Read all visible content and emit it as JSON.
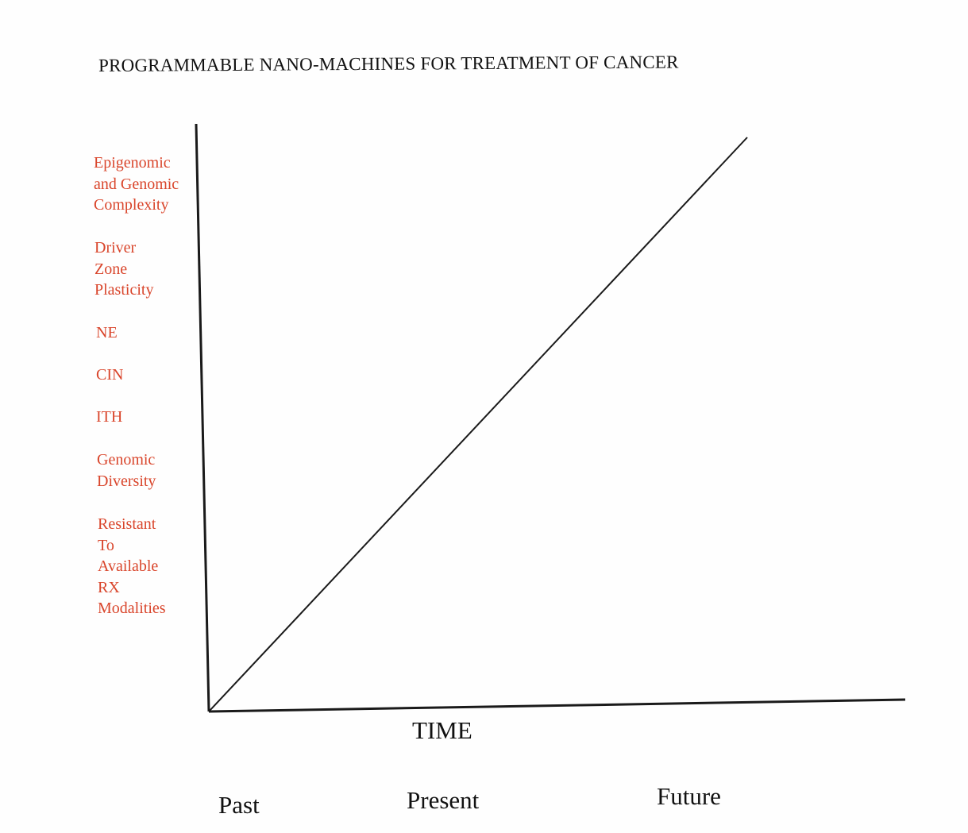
{
  "chart_data": {
    "type": "line",
    "title": "PROGRAMMABLE NANO-MACHINES FOR TREATMENT OF CANCER",
    "xlabel": "TIME",
    "x_tick_labels": [
      "Past",
      "Present",
      "Future"
    ],
    "y_labels": [
      [
        "Epigenomic",
        "and Genomic",
        "Complexity"
      ],
      [
        "Driver",
        "Zone",
        "Plasticity"
      ],
      [
        "NE"
      ],
      [
        "CIN"
      ],
      [
        "ITH"
      ],
      [
        "Genomic",
        "Diversity"
      ],
      [
        "Resistant",
        "To",
        "Available",
        "RX",
        "Modalities"
      ]
    ],
    "series": [
      {
        "x": [
          0,
          1
        ],
        "y": [
          0,
          1
        ]
      }
    ],
    "colors": {
      "y_labels": "#d9452b",
      "axes": "#1a1a1a",
      "text": "#111111"
    },
    "grid": false,
    "legend": "none"
  }
}
